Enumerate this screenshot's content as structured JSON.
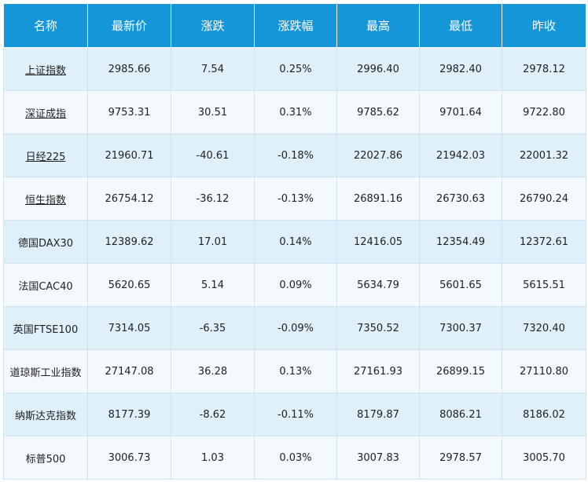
{
  "headers": [
    "名称",
    "最新价",
    "涨跌",
    "涨跌幅",
    "最高",
    "最低",
    "昨收"
  ],
  "rows": [
    {
      "name": "上证指数",
      "link": true,
      "cells": [
        "2985.66",
        "7.54",
        "0.25%",
        "2996.40",
        "2982.40",
        "2978.12"
      ]
    },
    {
      "name": "深证成指",
      "link": true,
      "cells": [
        "9753.31",
        "30.51",
        "0.31%",
        "9785.62",
        "9701.64",
        "9722.80"
      ]
    },
    {
      "name": "日经225",
      "link": true,
      "cells": [
        "21960.71",
        "-40.61",
        "-0.18%",
        "22027.86",
        "21942.03",
        "22001.32"
      ]
    },
    {
      "name": "恒生指数",
      "link": true,
      "cells": [
        "26754.12",
        "-36.12",
        "-0.13%",
        "26891.16",
        "26730.63",
        "26790.24"
      ]
    },
    {
      "name": "德国DAX30",
      "link": false,
      "cells": [
        "12389.62",
        "17.01",
        "0.14%",
        "12416.05",
        "12354.49",
        "12372.61"
      ]
    },
    {
      "name": "法国CAC40",
      "link": false,
      "cells": [
        "5620.65",
        "5.14",
        "0.09%",
        "5634.79",
        "5601.65",
        "5615.51"
      ]
    },
    {
      "name": "英国FTSE100",
      "link": false,
      "cells": [
        "7314.05",
        "-6.35",
        "-0.09%",
        "7350.52",
        "7300.37",
        "7320.40"
      ]
    },
    {
      "name": "道琼斯工业指数",
      "link": false,
      "cells": [
        "27147.08",
        "36.28",
        "0.13%",
        "27161.93",
        "26899.15",
        "27110.80"
      ]
    },
    {
      "name": "纳斯达克指数",
      "link": false,
      "cells": [
        "8177.39",
        "-8.62",
        "-0.11%",
        "8179.87",
        "8086.21",
        "8186.02"
      ]
    },
    {
      "name": "标普500",
      "link": false,
      "cells": [
        "3006.73",
        "1.03",
        "0.03%",
        "3007.83",
        "2978.57",
        "3005.70"
      ]
    }
  ],
  "colors": {
    "header_bg": "#1496d9",
    "row_odd_bg": "#dff0fb",
    "row_even_bg": "#f4f9fd",
    "border": "#cfe3f1"
  }
}
